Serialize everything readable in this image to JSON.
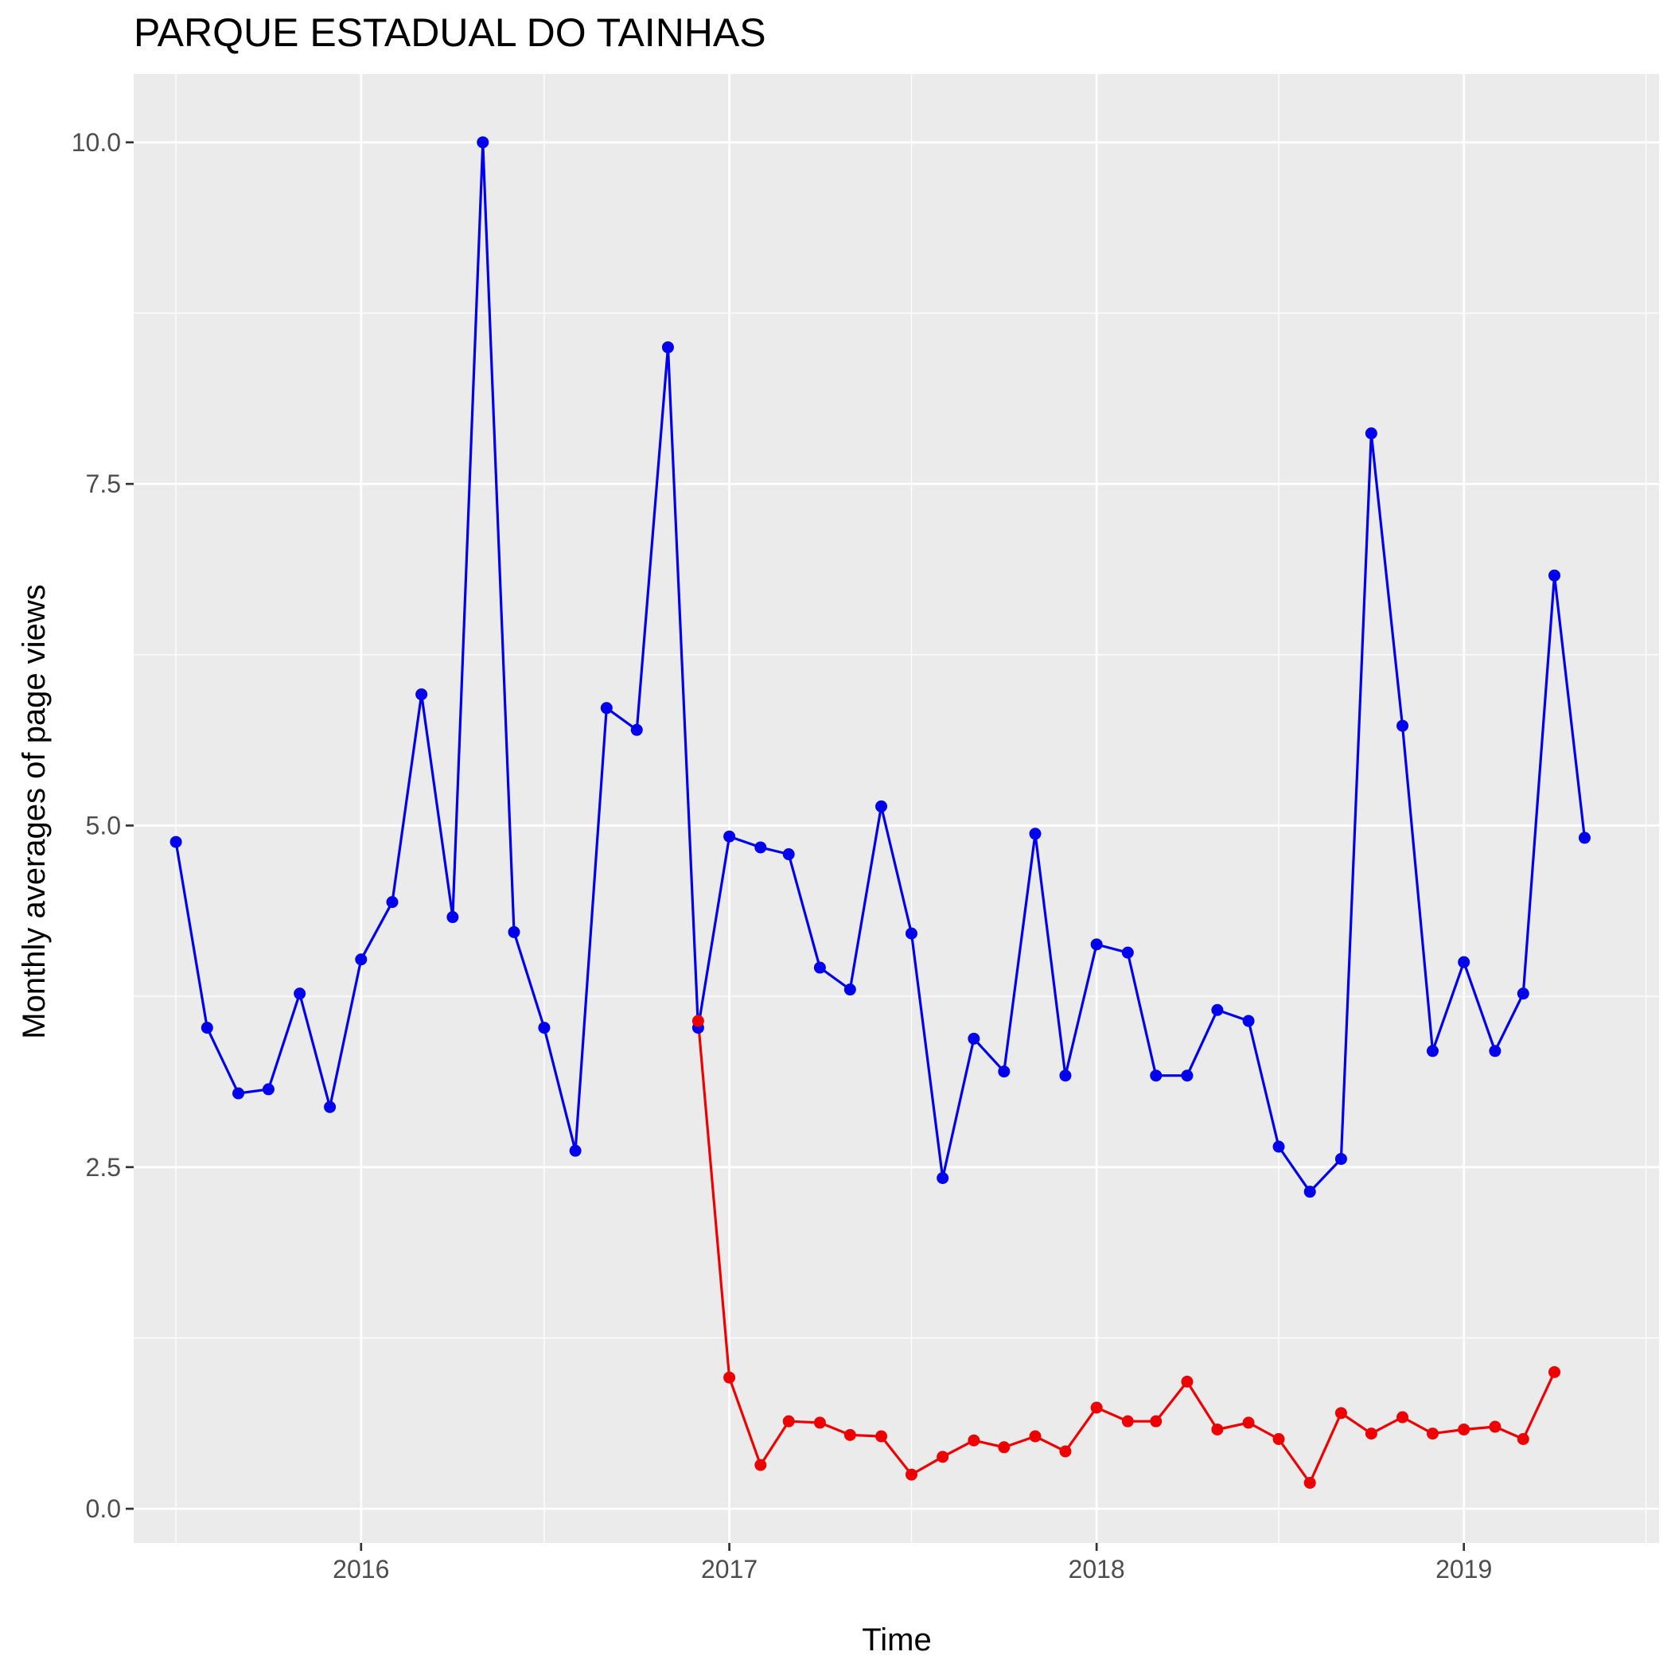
{
  "chart_data": {
    "type": "line",
    "title": "PARQUE ESTADUAL DO TAINHAS",
    "xlabel": "Time",
    "ylabel": "Monthly averages of page views",
    "x_ticks": [
      "2016",
      "2017",
      "2018",
      "2019"
    ],
    "y_ticks": [
      "0.0",
      "2.5",
      "5.0",
      "7.5",
      "10.0"
    ],
    "xlim": [
      "2015-05-20",
      "2019-07-14"
    ],
    "ylim": [
      -0.25,
      10.5
    ],
    "grid": true,
    "legend": "none",
    "series": [
      {
        "color": "#0000ee",
        "points": [
          [
            "2015-07-01",
            4.88
          ],
          [
            "2015-08-01",
            3.52
          ],
          [
            "2015-09-01",
            3.04
          ],
          [
            "2015-10-01",
            3.07
          ],
          [
            "2015-11-01",
            3.77
          ],
          [
            "2015-12-01",
            2.94
          ],
          [
            "2016-01-01",
            4.02
          ],
          [
            "2016-02-01",
            4.44
          ],
          [
            "2016-03-01",
            5.96
          ],
          [
            "2016-04-01",
            4.33
          ],
          [
            "2016-05-01",
            10.0
          ],
          [
            "2016-06-01",
            4.22
          ],
          [
            "2016-07-01",
            3.52
          ],
          [
            "2016-08-01",
            2.62
          ],
          [
            "2016-09-01",
            5.86
          ],
          [
            "2016-10-01",
            5.7
          ],
          [
            "2016-11-01",
            8.5
          ],
          [
            "2016-12-01",
            3.52
          ],
          [
            "2017-01-01",
            4.92
          ],
          [
            "2017-02-01",
            4.84
          ],
          [
            "2017-03-01",
            4.79
          ],
          [
            "2017-04-01",
            3.96
          ],
          [
            "2017-05-01",
            3.8
          ],
          [
            "2017-06-01",
            5.14
          ],
          [
            "2017-07-01",
            4.21
          ],
          [
            "2017-08-01",
            2.42
          ],
          [
            "2017-09-01",
            3.44
          ],
          [
            "2017-10-01",
            3.2
          ],
          [
            "2017-11-01",
            4.94
          ],
          [
            "2017-12-01",
            3.17
          ],
          [
            "2018-01-01",
            4.13
          ],
          [
            "2018-02-01",
            4.07
          ],
          [
            "2018-03-01",
            3.17
          ],
          [
            "2018-04-01",
            3.17
          ],
          [
            "2018-05-01",
            3.65
          ],
          [
            "2018-06-01",
            3.57
          ],
          [
            "2018-07-01",
            2.65
          ],
          [
            "2018-08-01",
            2.32
          ],
          [
            "2018-09-01",
            2.56
          ],
          [
            "2018-10-01",
            7.87
          ],
          [
            "2018-11-01",
            5.73
          ],
          [
            "2018-12-01",
            3.35
          ],
          [
            "2019-01-01",
            4.0
          ],
          [
            "2019-02-01",
            3.35
          ],
          [
            "2019-03-01",
            3.77
          ],
          [
            "2019-04-01",
            6.83
          ],
          [
            "2019-05-01",
            4.91
          ]
        ]
      },
      {
        "color": "#ee0000",
        "points": [
          [
            "2016-12-01",
            3.57
          ],
          [
            "2017-01-01",
            0.96
          ],
          [
            "2017-02-01",
            0.32
          ],
          [
            "2017-03-01",
            0.64
          ],
          [
            "2017-04-01",
            0.63
          ],
          [
            "2017-05-01",
            0.54
          ],
          [
            "2017-06-01",
            0.53
          ],
          [
            "2017-07-01",
            0.25
          ],
          [
            "2017-08-01",
            0.38
          ],
          [
            "2017-09-01",
            0.5
          ],
          [
            "2017-10-01",
            0.45
          ],
          [
            "2017-11-01",
            0.53
          ],
          [
            "2017-12-01",
            0.42
          ],
          [
            "2018-01-01",
            0.74
          ],
          [
            "2018-02-01",
            0.64
          ],
          [
            "2018-03-01",
            0.64
          ],
          [
            "2018-04-01",
            0.93
          ],
          [
            "2018-05-01",
            0.58
          ],
          [
            "2018-06-01",
            0.63
          ],
          [
            "2018-07-01",
            0.51
          ],
          [
            "2018-08-01",
            0.19
          ],
          [
            "2018-09-01",
            0.7
          ],
          [
            "2018-10-01",
            0.55
          ],
          [
            "2018-11-01",
            0.67
          ],
          [
            "2018-12-01",
            0.55
          ],
          [
            "2019-01-01",
            0.58
          ],
          [
            "2019-02-01",
            0.6
          ],
          [
            "2019-03-01",
            0.51
          ],
          [
            "2019-04-01",
            1.0
          ]
        ]
      }
    ]
  }
}
